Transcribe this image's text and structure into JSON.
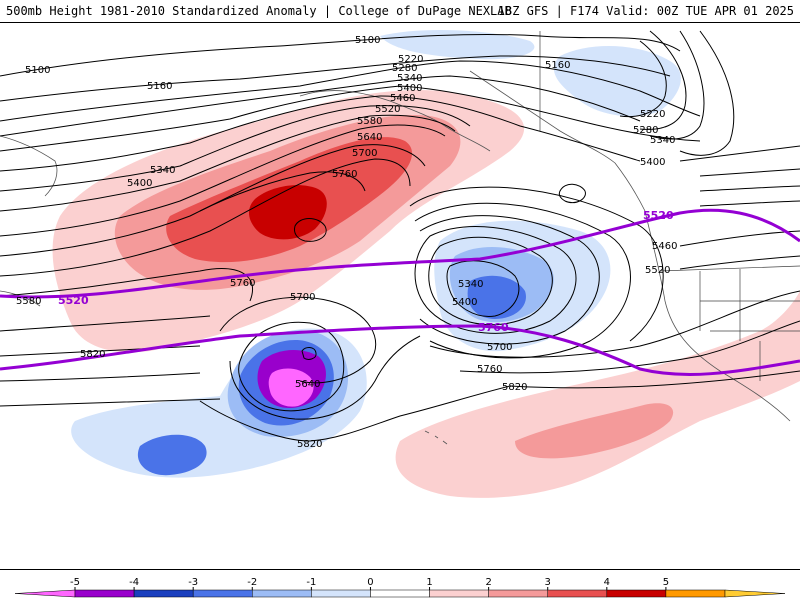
{
  "header": {
    "title_left": "500mb Height 1981-2010 Standardized Anomaly | College of DuPage NEXLAB",
    "title_right": "18Z GFS | F174 Valid: 00Z TUE APR 01 2025"
  },
  "contour_labels": [
    "5100",
    "5100",
    "5160",
    "5160",
    "5220",
    "5220",
    "5280",
    "5280",
    "5340",
    "5340",
    "5340",
    "5400",
    "5400",
    "5400",
    "5460",
    "5460",
    "5520",
    "5520",
    "5520",
    "5580",
    "5580",
    "5640",
    "5640",
    "5700",
    "5700",
    "5700",
    "5760",
    "5760",
    "5760",
    "5820",
    "5820",
    "5820",
    "5400",
    "5340"
  ],
  "thick_contour_labels": [
    "5520",
    "5520",
    "5760"
  ],
  "colorbar": {
    "ticks": [
      "-5",
      "-4",
      "-3",
      "-2",
      "-1",
      "0",
      "1",
      "2",
      "3",
      "4",
      "5"
    ],
    "colors": [
      "#ff66ff",
      "#9900cc",
      "#1a3fbf",
      "#4a73e8",
      "#9cbcf5",
      "#d4e4fb",
      "#ffffff",
      "#fbd0d0",
      "#f49a9a",
      "#e85050",
      "#c80000",
      "#ff9900",
      "#ffcc33"
    ]
  }
}
